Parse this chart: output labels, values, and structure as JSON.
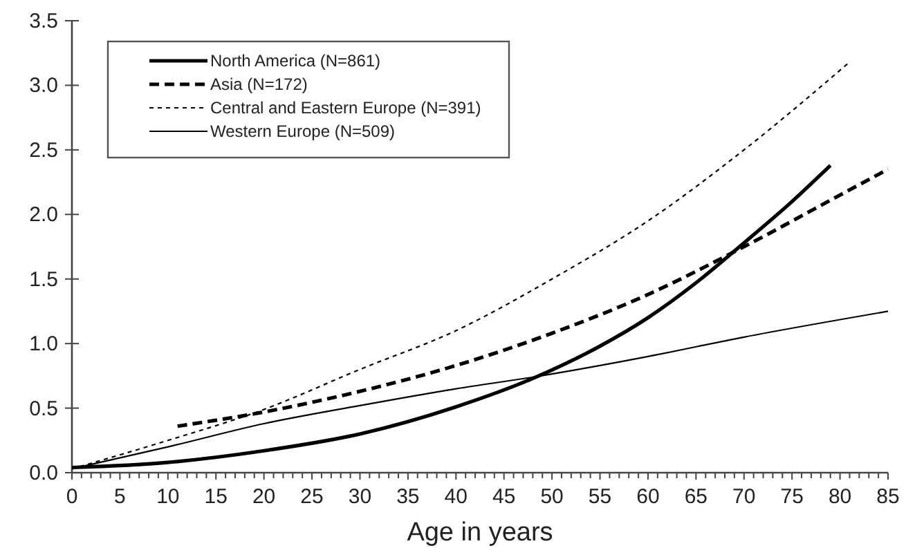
{
  "chart_data": {
    "type": "line",
    "xlabel": "Age in years",
    "xlim": [
      0,
      85
    ],
    "ylim": [
      0,
      3.5
    ],
    "xticks": [
      0,
      {
        "value": 1,
        "label": null
      },
      {
        "value": 2,
        "label": null
      },
      {
        "value": 3,
        "label": null
      },
      {
        "value": 4,
        "label": null
      },
      5,
      {
        "value": 6,
        "label": null
      },
      {
        "value": 7,
        "label": null
      },
      {
        "value": 8,
        "label": null
      },
      {
        "value": 9,
        "label": null
      },
      10,
      {
        "value": 11,
        "label": null
      },
      {
        "value": 12,
        "label": null
      },
      {
        "value": 13,
        "label": null
      },
      {
        "value": 14,
        "label": null
      },
      15,
      {
        "value": 16,
        "label": null
      },
      {
        "value": 17,
        "label": null
      },
      {
        "value": 18,
        "label": null
      },
      {
        "value": 19,
        "label": null
      },
      20,
      {
        "value": 21,
        "label": null
      },
      {
        "value": 22,
        "label": null
      },
      {
        "value": 23,
        "label": null
      },
      {
        "value": 24,
        "label": null
      },
      25,
      {
        "value": 26,
        "label": null
      },
      {
        "value": 27,
        "label": null
      },
      {
        "value": 28,
        "label": null
      },
      {
        "value": 29,
        "label": null
      },
      30,
      {
        "value": 31,
        "label": null
      },
      {
        "value": 32,
        "label": null
      },
      {
        "value": 33,
        "label": null
      },
      {
        "value": 34,
        "label": null
      },
      35,
      {
        "value": 36,
        "label": null
      },
      {
        "value": 37,
        "label": null
      },
      {
        "value": 38,
        "label": null
      },
      {
        "value": 39,
        "label": null
      },
      40,
      {
        "value": 41,
        "label": null
      },
      {
        "value": 42,
        "label": null
      },
      {
        "value": 43,
        "label": null
      },
      {
        "value": 44,
        "label": null
      },
      45,
      {
        "value": 46,
        "label": null
      },
      {
        "value": 47,
        "label": null
      },
      {
        "value": 48,
        "label": null
      },
      {
        "value": 49,
        "label": null
      },
      50,
      {
        "value": 51,
        "label": null
      },
      {
        "value": 52,
        "label": null
      },
      {
        "value": 53,
        "label": null
      },
      {
        "value": 54,
        "label": null
      },
      55,
      {
        "value": 56,
        "label": null
      },
      {
        "value": 57,
        "label": null
      },
      {
        "value": 58,
        "label": null
      },
      {
        "value": 59,
        "label": null
      },
      60,
      {
        "value": 61,
        "label": null
      },
      {
        "value": 62,
        "label": null
      },
      {
        "value": 63,
        "label": null
      },
      {
        "value": 64,
        "label": null
      },
      65,
      {
        "value": 66,
        "label": null
      },
      {
        "value": 67,
        "label": null
      },
      {
        "value": 68,
        "label": null
      },
      {
        "value": 69,
        "label": null
      },
      70,
      {
        "value": 71,
        "label": null
      },
      {
        "value": 72,
        "label": null
      },
      {
        "value": 73,
        "label": null
      },
      {
        "value": 74,
        "label": null
      },
      75,
      {
        "value": 76,
        "label": null
      },
      {
        "value": 77,
        "label": null
      },
      {
        "value": 78,
        "label": null
      },
      {
        "value": 79,
        "label": null
      },
      80,
      {
        "value": 81,
        "label": null
      },
      {
        "value": 82,
        "label": null
      },
      {
        "value": 83,
        "label": null
      },
      {
        "value": 84,
        "label": null
      },
      85
    ],
    "yticks": [
      {
        "value": 0,
        "label": "0.0"
      },
      0.5,
      {
        "value": 1,
        "label": "1.0"
      },
      1.5,
      {
        "value": 2,
        "label": "2.0"
      },
      2.5,
      {
        "value": 3,
        "label": "3.0"
      },
      3.5
    ],
    "legend": "top left",
    "grid": false,
    "series": [
      {
        "name": "North America (N=861)",
        "color": "#000000",
        "line_style": "solid",
        "x": [
          0,
          10,
          20,
          30,
          40,
          48,
          55,
          60,
          65,
          70,
          75,
          79
        ],
        "values": [
          0.04,
          0.08,
          0.17,
          0.3,
          0.51,
          0.73,
          0.98,
          1.2,
          1.47,
          1.78,
          2.1,
          2.38
        ]
      },
      {
        "name": "Asia (N=172)",
        "color": "#000000",
        "line_style": "dashed",
        "x": [
          11,
          20,
          30,
          40,
          50,
          60,
          70,
          80,
          85
        ],
        "values": [
          0.36,
          0.47,
          0.63,
          0.83,
          1.08,
          1.38,
          1.75,
          2.15,
          2.35
        ]
      },
      {
        "name": "Central and Eastern Europe (N=391)",
        "color": "#000000",
        "line_style": "dotted",
        "x": [
          0,
          10,
          20,
          30,
          40,
          50,
          60,
          70,
          81
        ],
        "values": [
          0.03,
          0.25,
          0.49,
          0.8,
          1.1,
          1.5,
          1.95,
          2.5,
          3.18
        ]
      },
      {
        "name": "Western Europe (N=509)",
        "color": "#000000",
        "line_style": "solid",
        "x": [
          0,
          10,
          20,
          30,
          40,
          48,
          60,
          70,
          85
        ],
        "values": [
          0.03,
          0.2,
          0.38,
          0.52,
          0.65,
          0.74,
          0.9,
          1.05,
          1.25
        ]
      }
    ]
  }
}
